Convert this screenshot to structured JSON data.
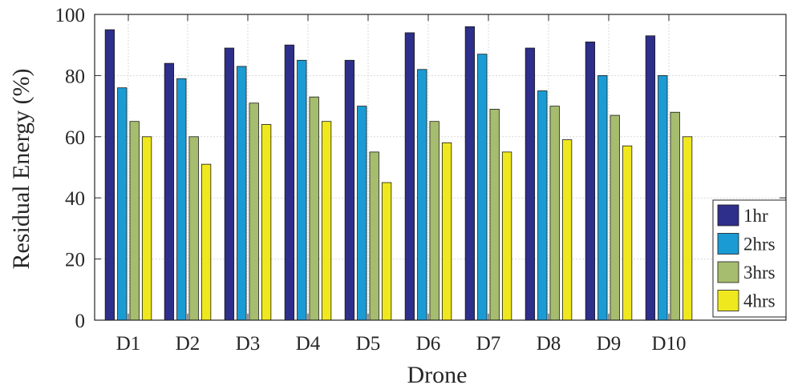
{
  "chart_data": {
    "type": "bar",
    "title": "",
    "xlabel": "Drone",
    "ylabel": "Residual Energy (%)",
    "ylim": [
      0,
      100
    ],
    "yticks": [
      "0",
      "20",
      "40",
      "60",
      "80",
      "100"
    ],
    "grid": true,
    "legend_position": "bottom-right",
    "categories": [
      "D1",
      "D2",
      "D3",
      "D4",
      "D5",
      "D6",
      "D7",
      "D8",
      "D9",
      "D10"
    ],
    "series": [
      {
        "name": "1hr",
        "color": "#2e2e8b",
        "values": [
          95,
          84,
          89,
          90,
          85,
          94,
          96,
          89,
          91,
          93
        ]
      },
      {
        "name": "2hrs",
        "color": "#1a9bd4",
        "values": [
          76,
          79,
          83,
          85,
          70,
          82,
          87,
          75,
          80,
          80
        ]
      },
      {
        "name": "3hrs",
        "color": "#a6bc6e",
        "values": [
          65,
          60,
          71,
          73,
          55,
          65,
          69,
          70,
          67,
          68
        ]
      },
      {
        "name": "4hrs",
        "color": "#f0e81e",
        "values": [
          60,
          51,
          64,
          65,
          45,
          58,
          55,
          59,
          57,
          60
        ]
      }
    ]
  }
}
